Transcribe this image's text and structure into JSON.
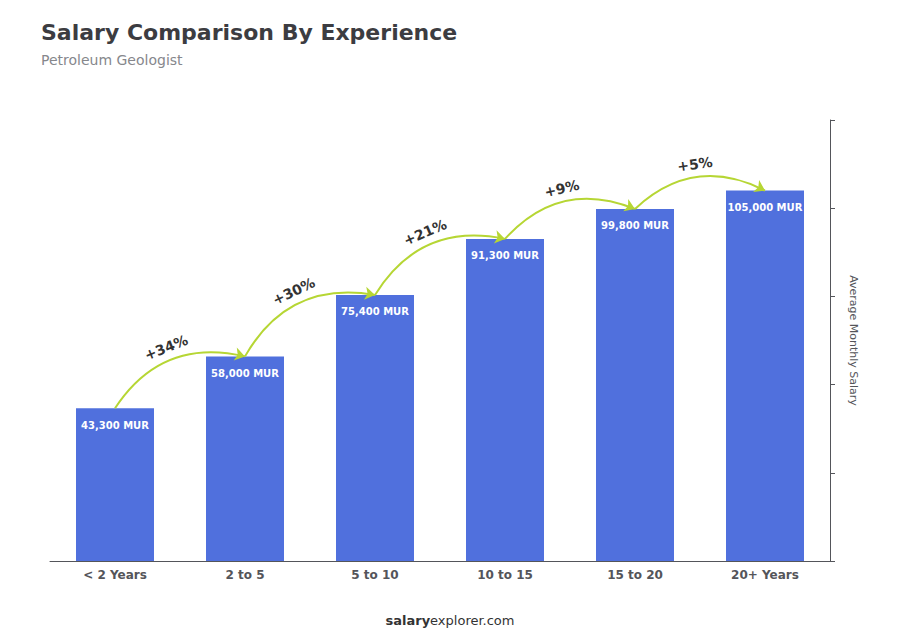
{
  "chart_data": {
    "type": "bar",
    "title": "Salary Comparison By Experience",
    "subtitle": "Petroleum Geologist",
    "categories": [
      "< 2 Years",
      "2 to 5",
      "5 to 10",
      "10 to 15",
      "15 to 20",
      "20+ Years"
    ],
    "values": [
      43300,
      58000,
      75400,
      91300,
      99800,
      105000
    ],
    "value_labels": [
      "43,300 MUR",
      "58,000 MUR",
      "75,400 MUR",
      "91,300 MUR",
      "99,800 MUR",
      "105,000 MUR"
    ],
    "data_labels": true,
    "annotations": [
      "+34%",
      "+30%",
      "+21%",
      "+9%",
      "+5%"
    ],
    "footer": [
      "salary",
      "explorer.com"
    ],
    "ylabel": "Average Monthly Salary",
    "ylim": [
      0,
      125000
    ],
    "yticks": [
      0,
      25000,
      50000,
      75000,
      100000,
      125000
    ],
    "tick_labels": "x",
    "grid": false
  }
}
